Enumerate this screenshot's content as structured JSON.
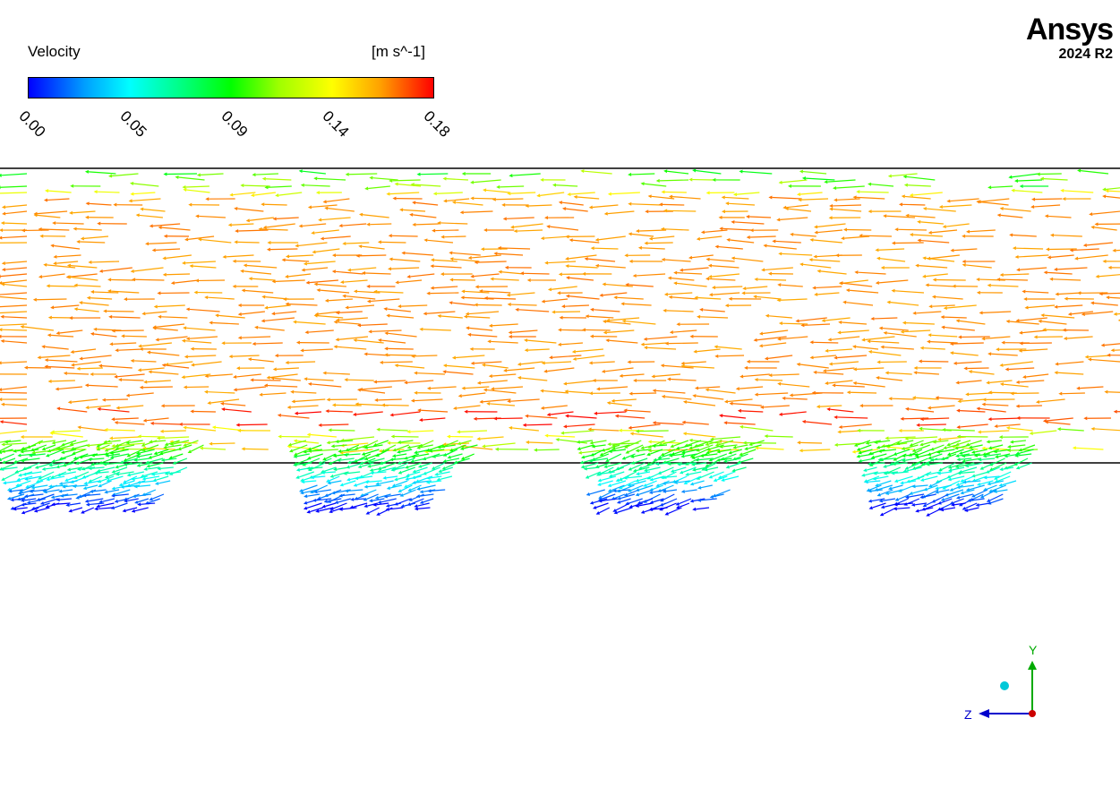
{
  "legend": {
    "title": "Velocity",
    "units": "[m s^-1]",
    "ticks": [
      "0.00",
      "0.05",
      "0.09",
      "0.14",
      "0.18"
    ],
    "colors": [
      "#0000ff",
      "#00ffff",
      "#00ff00",
      "#ffff00",
      "#ff0000"
    ]
  },
  "brand": {
    "name": "Ansys",
    "version": "2024 R2"
  },
  "triad": {
    "y_label": "Y",
    "z_label": "Z",
    "y_color": "#00aa00",
    "z_color": "#0000cc",
    "x_color": "#cc0000"
  }
}
